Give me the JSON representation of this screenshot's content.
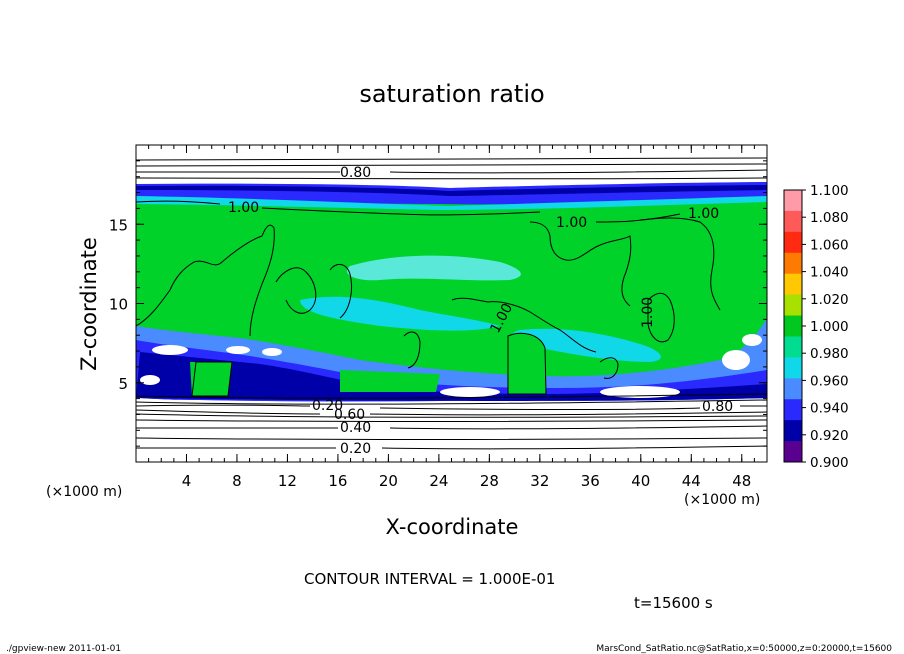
{
  "chart_data": {
    "type": "heatmap",
    "title": "saturation ratio",
    "xlabel": "X-coordinate",
    "ylabel": "Z-coordinate",
    "x_unit": "(×1000 m)",
    "y_unit": "(×1000 m)",
    "x_range": [
      0,
      50
    ],
    "y_range": [
      0,
      20
    ],
    "x_ticks": [
      "4",
      "8",
      "12",
      "16",
      "20",
      "24",
      "28",
      "32",
      "36",
      "40",
      "44",
      "48"
    ],
    "y_ticks": [
      "5",
      "10",
      "15"
    ],
    "colorbar": {
      "labels": [
        "1.100",
        "1.080",
        "1.060",
        "1.040",
        "1.020",
        "1.000",
        "0.980",
        "0.960",
        "0.940",
        "0.920",
        "0.900"
      ],
      "colors": [
        "#ff9aa8",
        "#ff5a5a",
        "#ff2a10",
        "#ff7a00",
        "#ffc800",
        "#a8e000",
        "#00c820",
        "#00dc90",
        "#10d8e8",
        "#4a8cff",
        "#2a2aff",
        "#0000a8",
        "#5a0090"
      ]
    },
    "contour_labels": [
      "0.80",
      "1.00",
      "1.00",
      "1.00",
      "1.00",
      "1.00",
      "0.80",
      "0.20",
      "0.60",
      "0.40",
      "0.20"
    ],
    "contour_interval": "CONTOUR INTERVAL = 1.000E-01",
    "time": "t=15600 s"
  },
  "footer": {
    "left": "./gpview-new   2011-01-01",
    "right": "MarsCond_SatRatio.nc@SatRatio,x=0:50000,z=0:20000,t=15600"
  }
}
